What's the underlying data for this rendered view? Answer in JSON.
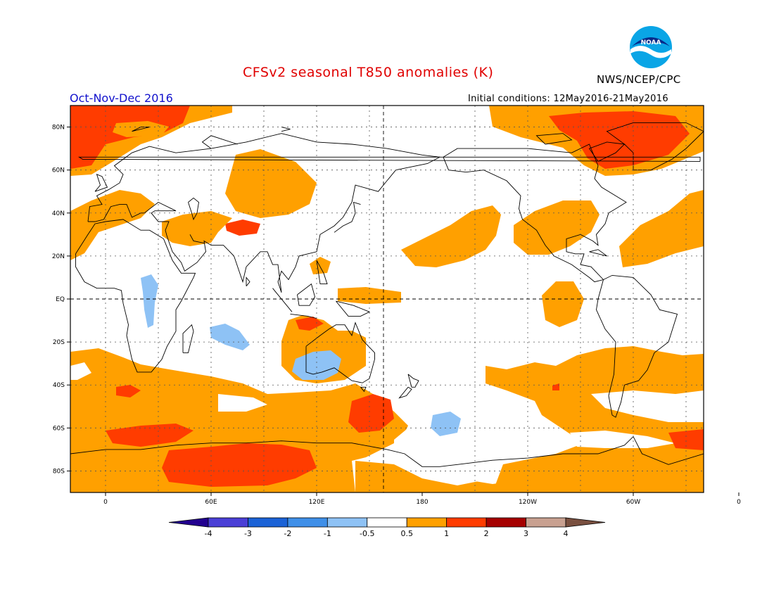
{
  "header": {
    "title": "CFSv2 seasonal T850 anomalies (K)",
    "agency": "NWS/NCEP/CPC",
    "logo_text": "NOAA",
    "season": "Oct-Nov-Dec 2016",
    "initial_conditions": "Initial conditions: 12May2016-21May2016"
  },
  "map": {
    "projection": "cylindrical equidistant",
    "center_longitude": 180,
    "lat_labels": [
      "80N",
      "60N",
      "40N",
      "20N",
      "EQ",
      "20S",
      "40S",
      "60S",
      "80S"
    ],
    "lon_labels": [
      "0",
      "60E",
      "120E",
      "180",
      "120W",
      "60W",
      "0"
    ]
  },
  "colorbar": {
    "tick_labels": [
      "-4",
      "-3",
      "-2",
      "-1",
      "-0.5",
      "0.5",
      "1",
      "2",
      "3",
      "4"
    ],
    "colors": [
      "#22008f",
      "#4a3fd6",
      "#1b62d6",
      "#3f8fe8",
      "#8ec2f5",
      "#ffffff",
      "#ffa000",
      "#ff3c00",
      "#a50000",
      "#c8a090",
      "#7a5040"
    ]
  },
  "anomaly_regions": [
    {
      "name": "arctic-atlantic-warm",
      "level": "1 to 2 K"
    },
    {
      "name": "greenland-warm",
      "level": "1 to 2 K"
    },
    {
      "name": "antarctic-indian-ocean-warm",
      "level": "1 to 2 K"
    },
    {
      "name": "new-zealand-south-warm",
      "level": "1 to 2 K"
    },
    {
      "name": "tibet-warm",
      "level": "1 to 2 K"
    },
    {
      "name": "australia-cool",
      "level": "-1 to -0.5 K"
    },
    {
      "name": "east-africa-cool",
      "level": "-1 to -0.5 K"
    },
    {
      "name": "indian-ocean-cool",
      "level": "-1 to -0.5 K"
    },
    {
      "name": "south-pacific-cool",
      "level": "-1 to -0.5 K"
    }
  ]
}
